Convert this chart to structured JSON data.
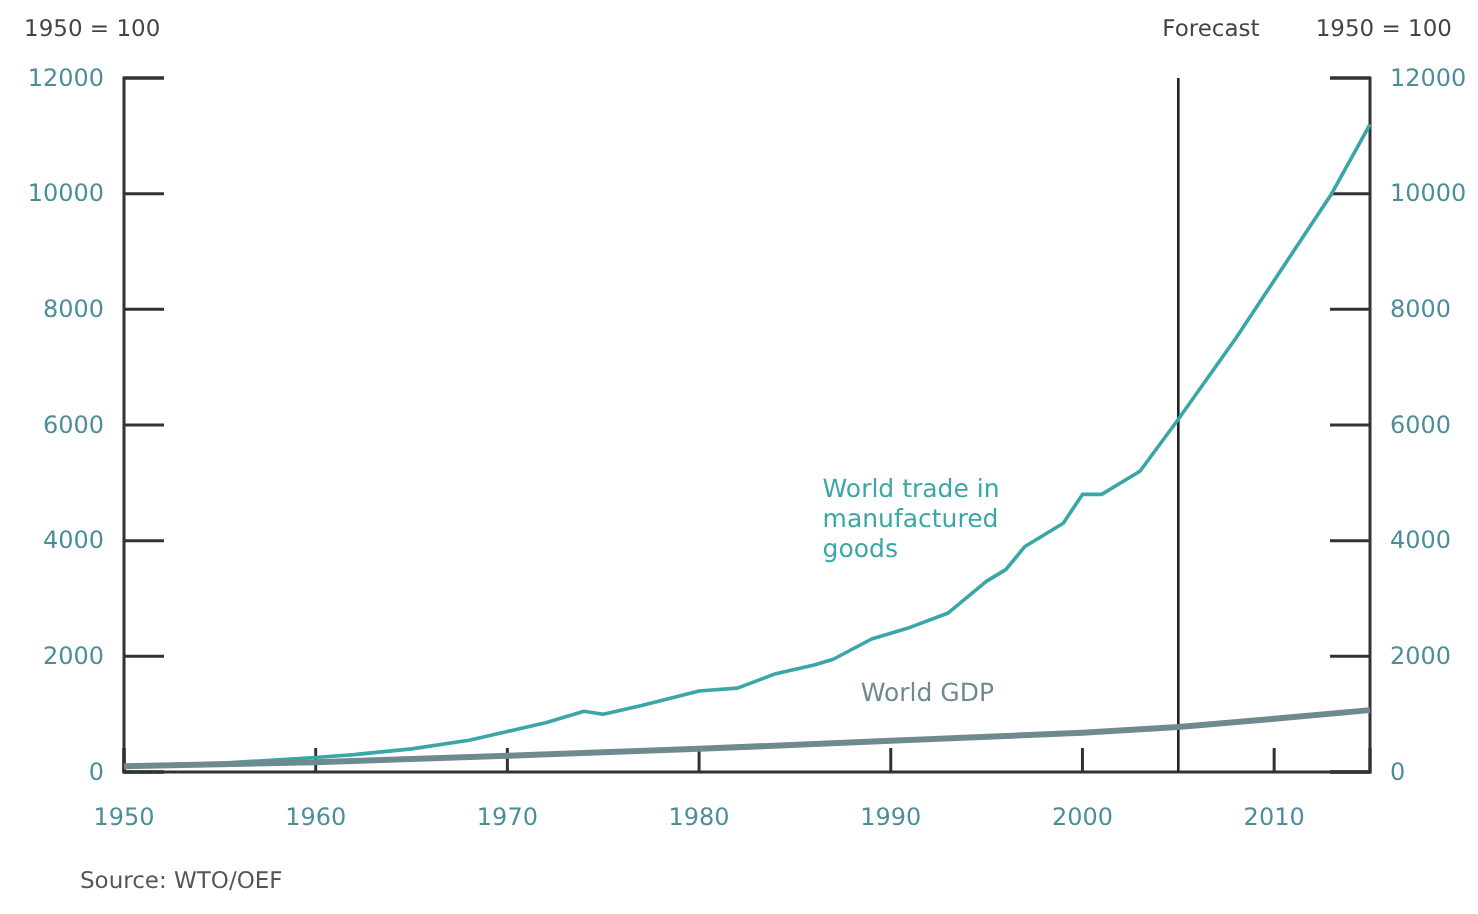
{
  "chart_data": {
    "type": "line",
    "ylabel": "1950 = 100",
    "y2label": "1950 = 100",
    "xlim": [
      1950,
      2015
    ],
    "xticks": [
      1950,
      1960,
      1970,
      1980,
      1990,
      2000,
      2010
    ],
    "ylim": [
      0,
      12000
    ],
    "yticks": [
      0,
      2000,
      4000,
      6000,
      8000,
      10000,
      12000
    ],
    "y2lim": [
      0,
      12000
    ],
    "y2ticks": [
      0,
      2000,
      4000,
      6000,
      8000,
      10000,
      12000
    ],
    "grid": false,
    "marker": "none",
    "line_style": "solid",
    "series": [
      {
        "name": "World trade in manufactured goods",
        "color": "#3aa7a6",
        "x": [
          1950,
          1955,
          1960,
          1962,
          1965,
          1968,
          1970,
          1972,
          1974,
          1975,
          1977,
          1980,
          1982,
          1984,
          1986,
          1987,
          1989,
          1991,
          1993,
          1995,
          1996,
          1997,
          1999,
          2000,
          2001,
          2003,
          2005,
          2008,
          2010,
          2013,
          2015
        ],
        "values": [
          100,
          150,
          250,
          300,
          400,
          550,
          700,
          850,
          1050,
          1000,
          1150,
          1400,
          1450,
          1700,
          1850,
          1950,
          2300,
          2500,
          2750,
          3300,
          3500,
          3900,
          4300,
          4800,
          4800,
          5200,
          6100,
          7500,
          8500,
          10000,
          11200
        ]
      },
      {
        "name": "World GDP",
        "color": "#6f8a8f",
        "x": [
          1950,
          1960,
          1970,
          1980,
          1990,
          2000,
          2005,
          2010,
          2015
        ],
        "values": [
          100,
          170,
          280,
          400,
          540,
          680,
          780,
          920,
          1070
        ]
      }
    ],
    "ref_lines": [
      {
        "axis": "x",
        "value": 2005,
        "label": "Forecast",
        "color": "#222222"
      }
    ],
    "annotations": [
      "Source: WTO/OEF"
    ]
  }
}
